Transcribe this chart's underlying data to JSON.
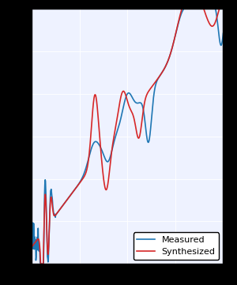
{
  "title": "",
  "xlabel": "",
  "ylabel": "",
  "xlim": [
    0,
    200
  ],
  "ylim": [
    -80,
    -20
  ],
  "grid": true,
  "plot_bg_color": "#eef2ff",
  "fig_bg_color": "#000000",
  "line_measured_color": "#1f77b4",
  "line_synthesized_color": "#d62728",
  "line_width": 1.2,
  "legend_entries": [
    "Measured",
    "Synthesized"
  ],
  "legend_loc": "lower right",
  "figsize": [
    3.0,
    3.61
  ],
  "dpi": 100
}
